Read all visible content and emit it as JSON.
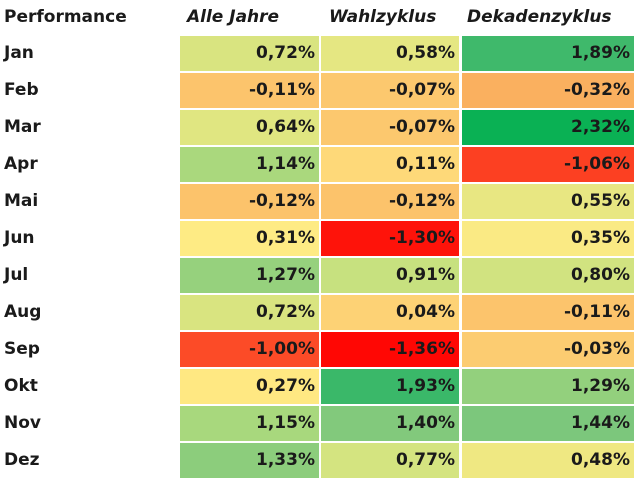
{
  "chart_data": {
    "type": "heatmap",
    "title": "Performance",
    "columns": [
      "Alle Jahre",
      "Wahlzyklus",
      "Dekadenzyklus"
    ],
    "rows": [
      {
        "label": "Jan",
        "values": [
          0.72,
          0.58,
          1.89
        ],
        "labels": [
          "0,72%",
          "0,58%",
          "1,89%"
        ]
      },
      {
        "label": "Feb",
        "values": [
          -0.11,
          -0.07,
          -0.32
        ],
        "labels": [
          "-0,11%",
          "-0,07%",
          "-0,32%"
        ]
      },
      {
        "label": "Mar",
        "values": [
          0.64,
          -0.07,
          2.32
        ],
        "labels": [
          "0,64%",
          "-0,07%",
          "2,32%"
        ]
      },
      {
        "label": "Apr",
        "values": [
          1.14,
          0.11,
          -1.06
        ],
        "labels": [
          "1,14%",
          "0,11%",
          "-1,06%"
        ]
      },
      {
        "label": "Mai",
        "values": [
          -0.12,
          -0.12,
          0.55
        ],
        "labels": [
          "-0,12%",
          "-0,12%",
          "0,55%"
        ]
      },
      {
        "label": "Jun",
        "values": [
          0.31,
          -1.3,
          0.35
        ],
        "labels": [
          "0,31%",
          "-1,30%",
          "0,35%"
        ]
      },
      {
        "label": "Jul",
        "values": [
          1.27,
          0.91,
          0.8
        ],
        "labels": [
          "1,27%",
          "0,91%",
          "0,80%"
        ]
      },
      {
        "label": "Aug",
        "values": [
          0.72,
          0.04,
          -0.11
        ],
        "labels": [
          "0,72%",
          "0,04%",
          "-0,11%"
        ]
      },
      {
        "label": "Sep",
        "values": [
          -1.0,
          -1.36,
          -0.03
        ],
        "labels": [
          "-1,00%",
          "-1,36%",
          "-0,03%"
        ]
      },
      {
        "label": "Okt",
        "values": [
          0.27,
          1.93,
          1.29
        ],
        "labels": [
          "0,27%",
          "1,93%",
          "1,29%"
        ]
      },
      {
        "label": "Nov",
        "values": [
          1.15,
          1.4,
          1.44
        ],
        "labels": [
          "1,15%",
          "1,40%",
          "1,44%"
        ]
      },
      {
        "label": "Dez",
        "values": [
          1.33,
          0.77,
          0.48
        ],
        "labels": [
          "1,33%",
          "0,77%",
          "0,48%"
        ]
      }
    ],
    "color_scale": {
      "low": "#f8696b",
      "mid": "#ffeb84",
      "high": "#63be7b"
    }
  },
  "colors": {
    "red": "#ff0000",
    "orange": "#f8964f",
    "yellow": "#ffeb84",
    "green": "#00b050"
  }
}
